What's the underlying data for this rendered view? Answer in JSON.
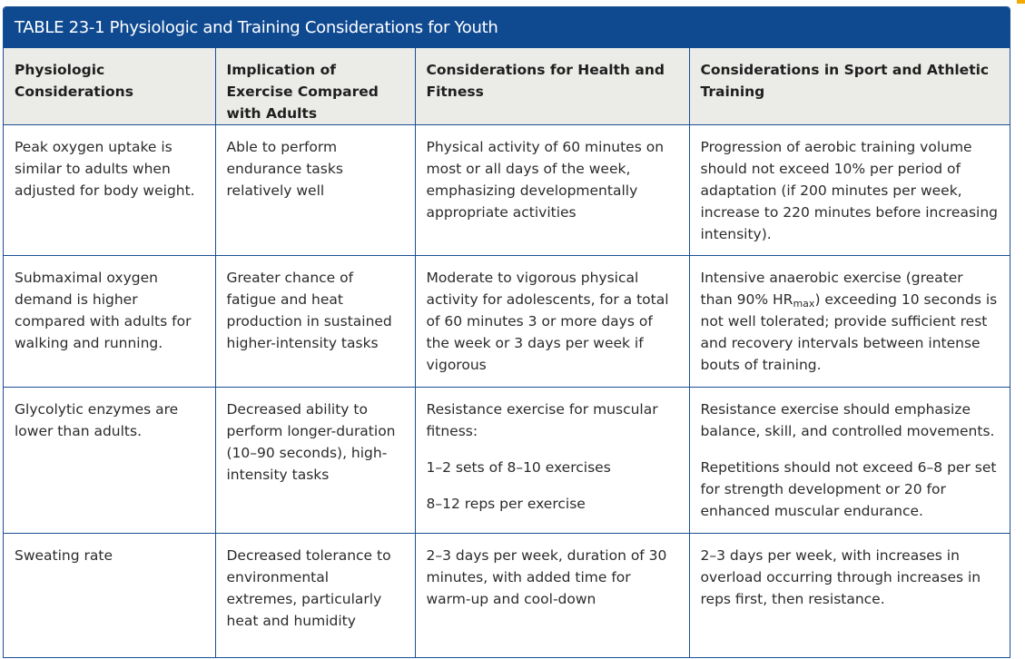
{
  "title": "TABLE 23-1 Physiologic and Training Considerations for Youth",
  "headers": [
    "Physiologic Considerations",
    "Implication of Exercise Compared with Adults",
    "Considerations for Health and Fitness",
    "Considerations in Sport and Athletic Training"
  ],
  "rows": [
    {
      "physiologic": "Peak oxygen uptake is similar to adults when adjusted for body weight.",
      "implication": "Able to perform endurance tasks relatively well",
      "health": "Physical activity of 60 minutes on most or all days of the week, emphasizing developmentally appropriate activities",
      "sport": "Progression of aerobic training volume should not exceed 10% per period of adaptation (if 200 minutes per week, increase to 220 minutes before increasing intensity)."
    },
    {
      "physiologic": "Submaximal oxygen demand is higher compared with adults for walking and running.",
      "implication": "Greater chance of fatigue and heat production in sustained higher-intensity tasks",
      "health": "Moderate to vigorous physical activity for adolescents, for a total of 60 minutes 3 or more days of the week or 3 days per week if vigorous",
      "sport_before": "Intensive anaerobic exercise (greater than 90% HR",
      "sport_sub": "max",
      "sport_after": ") exceeding 10 seconds is not well tolerated; provide sufficient rest and recovery intervals between intense bouts of training."
    },
    {
      "physiologic": "Glycolytic enzymes are lower than adults.",
      "implication": "Decreased ability to perform longer-duration (10–90 seconds), high-intensity tasks",
      "health_p1": "Resistance exercise for muscular fitness:",
      "health_p2": "1–2 sets of 8–10 exercises",
      "health_p3": "8–12 reps per exercise",
      "sport_p1": "Resistance exercise should emphasize balance, skill, and controlled movements.",
      "sport_p2": "Repetitions should not exceed 6–8 per set for strength development or 20 for enhanced muscular endurance."
    },
    {
      "physiologic": "Sweating rate",
      "implication": "Decreased tolerance to environmental extremes, particularly heat and humidity",
      "health": "2–3 days per week, duration of 30 minutes, with added time for warm-up and cool-down",
      "sport": "2–3 days per week, with increases in overload occurring through increases in reps first, then resistance."
    }
  ],
  "colors": {
    "title_bar": "#0f4a91",
    "border": "#1b4f93",
    "header_bg": "#ebebe8",
    "accent": "#f2a900"
  }
}
